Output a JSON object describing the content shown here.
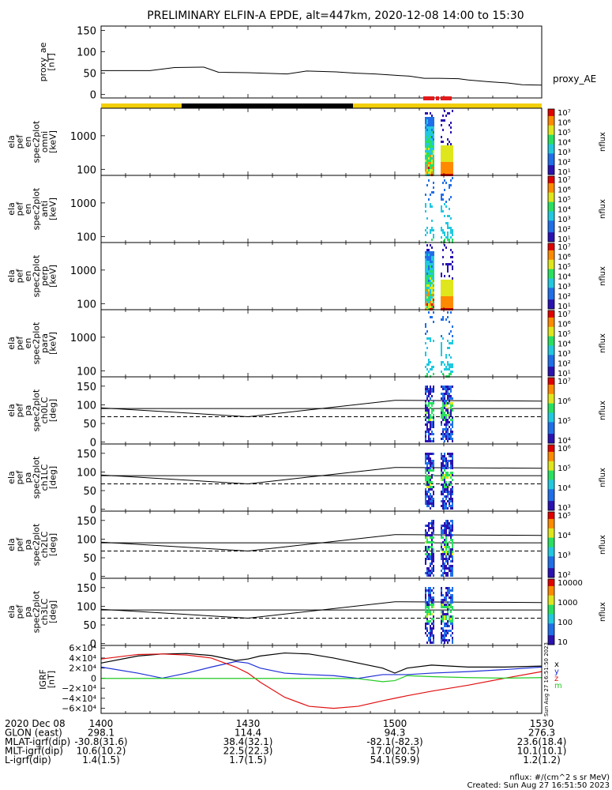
{
  "title": "PRELIMINARY ELFIN-A EPDE, alt=447km, 2020-12-08 14:00 to 15:30",
  "colors": {
    "bar_sunlit": "#f2cf08",
    "bar_shadow": "#000000",
    "science_zone": "#e31a1c",
    "igrf_x": "#000000",
    "igrf_y": "#1f2fd6",
    "igrf_z": "#e01010",
    "igrf_mag": "#22cc22"
  },
  "chart_data": [
    {
      "id": "proxy_ae",
      "type": "line",
      "ylabel": [
        "proxy_ae",
        "[nT]"
      ],
      "yticks": [
        "150",
        "100",
        "50",
        "0"
      ],
      "ylim": [
        -8,
        160
      ],
      "legend": "proxy_AE",
      "x_minutes": [
        0,
        20,
        30,
        42,
        48,
        60,
        76,
        84,
        96,
        104,
        112,
        120,
        126,
        132,
        138,
        146,
        150,
        158,
        166,
        172,
        180
      ],
      "y": [
        56,
        56,
        63,
        64,
        52,
        51,
        48,
        55,
        53,
        50,
        48,
        45,
        43,
        38,
        38,
        37,
        34,
        30,
        27,
        23,
        22
      ]
    },
    {
      "id": "en_omni",
      "type": "heatmap",
      "ylabel": [
        "ela",
        "pef",
        "en",
        "spec2plot",
        "omni",
        "[keV]"
      ],
      "yticks": [
        "1000",
        "100"
      ],
      "cbar_ticks": [
        "10⁷",
        "10⁶",
        "10⁵",
        "10⁴",
        "10³",
        "10²",
        "10¹"
      ],
      "cbar_label": "nflux"
    },
    {
      "id": "en_anti",
      "type": "heatmap",
      "ylabel": [
        "ela",
        "pef",
        "en",
        "spec2plot",
        "anti",
        "[keV]"
      ],
      "yticks": [
        "1000",
        "100"
      ],
      "cbar_ticks": [
        "10⁷",
        "10⁶",
        "10⁵",
        "10⁴",
        "10³",
        "10²",
        "10¹"
      ],
      "cbar_label": "nflux"
    },
    {
      "id": "en_perp",
      "type": "heatmap",
      "ylabel": [
        "ela",
        "pef",
        "en",
        "spec2plot",
        "perp",
        "[keV]"
      ],
      "yticks": [
        "1000",
        "100"
      ],
      "cbar_ticks": [
        "10⁷",
        "10⁶",
        "10⁵",
        "10⁴",
        "10³",
        "10²",
        "10¹"
      ],
      "cbar_label": "nflux"
    },
    {
      "id": "en_para",
      "type": "heatmap",
      "ylabel": [
        "ela",
        "pef",
        "en",
        "spec2plot",
        "para",
        "[keV]"
      ],
      "yticks": [
        "1000",
        "100"
      ],
      "cbar_ticks": [
        "10⁷",
        "10⁶",
        "10⁵",
        "10⁴",
        "10³",
        "10²",
        "10¹"
      ],
      "cbar_label": "nflux"
    },
    {
      "id": "pa_ch0",
      "type": "heatmap",
      "ylabel": [
        "ela",
        "pef",
        "pa",
        "spec2plot",
        "ch0LC",
        "[deg]"
      ],
      "yticks": [
        "150",
        "100",
        "50",
        "0"
      ],
      "cbar_ticks": [
        "10⁷",
        "10⁶",
        "10⁵",
        "10⁴"
      ],
      "cbar_label": "nflux"
    },
    {
      "id": "pa_ch1",
      "type": "heatmap",
      "ylabel": [
        "ela",
        "pef",
        "pa",
        "spec2plot",
        "ch1LC",
        "[deg]"
      ],
      "yticks": [
        "150",
        "100",
        "50",
        "0"
      ],
      "cbar_ticks": [
        "10⁶",
        "10⁵",
        "10⁴",
        "10³"
      ],
      "cbar_label": "nflux"
    },
    {
      "id": "pa_ch2",
      "type": "heatmap",
      "ylabel": [
        "ela",
        "pef",
        "pa",
        "spec2plot",
        "ch2LC",
        "[deg]"
      ],
      "yticks": [
        "150",
        "100",
        "50",
        "0"
      ],
      "cbar_ticks": [
        "10⁵",
        "10⁴",
        "10³",
        "10²"
      ],
      "cbar_label": "nflux"
    },
    {
      "id": "pa_ch3",
      "type": "heatmap",
      "ylabel": [
        "ela",
        "pef",
        "pa",
        "spec2plot",
        "ch3LC",
        "[deg]"
      ],
      "yticks": [
        "150",
        "100",
        "50",
        "0"
      ],
      "cbar_ticks": [
        "10000",
        "1000",
        "100",
        "10"
      ],
      "cbar_label": "nflux"
    },
    {
      "id": "igrf",
      "type": "line",
      "ylabel": [
        "IGRF",
        "[nT]"
      ],
      "yticks": [
        "6×10⁴",
        "4×10⁴",
        "2×10⁴",
        "0",
        "−2×10⁴",
        "−4×10⁴",
        "−6×10⁴"
      ],
      "ylim": [
        -70000,
        65000
      ],
      "legend": [
        "x",
        "y",
        "z",
        "m"
      ],
      "x_minutes": [
        0,
        15,
        25,
        35,
        45,
        55,
        60,
        65,
        75,
        85,
        95,
        105,
        115,
        120,
        125,
        135,
        150,
        165,
        180
      ],
      "series": [
        {
          "name": "x",
          "y": [
            30000,
            44000,
            48000,
            49000,
            45000,
            35000,
            38000,
            44000,
            50000,
            48000,
            40000,
            30000,
            20000,
            10000,
            20000,
            26000,
            22000,
            22000,
            24000
          ]
        },
        {
          "name": "y",
          "y": [
            22000,
            10000,
            0,
            10000,
            22000,
            33000,
            30000,
            20000,
            10000,
            7000,
            5000,
            -500,
            7000,
            7000,
            7000,
            10000,
            13000,
            17000,
            22000
          ]
        },
        {
          "name": "z",
          "y": [
            38000,
            47000,
            48000,
            46000,
            40000,
            22000,
            10000,
            -8000,
            -38000,
            -56000,
            -60000,
            -56000,
            -45000,
            -40000,
            -35000,
            -26000,
            -14000,
            0,
            13000
          ]
        },
        {
          "name": "m",
          "y": [
            -500,
            -500,
            -500,
            -500,
            -500,
            -500,
            -500,
            -500,
            -500,
            -500,
            -500,
            -1000,
            -7000,
            -5000,
            5000,
            3000,
            1000,
            0,
            1000
          ]
        }
      ]
    }
  ],
  "footer": {
    "rows": [
      {
        "label": "2020 Dec 08",
        "values": [
          "1400",
          "1430",
          "1500",
          "1530"
        ]
      },
      {
        "label": "GLON (east)",
        "values": [
          "298.1",
          "114.4",
          "94.3",
          "276.3"
        ]
      },
      {
        "label": "MLAT-igrf(dip)",
        "values": [
          "-30.8(31.6)",
          "38.4(32.1)",
          "-82.1(-82.3)",
          "23.6(18.4)"
        ]
      },
      {
        "label": "MLT-igrf(dip)",
        "values": [
          "10.6(10.2)",
          "22.5(22.3)",
          "17.0(20.5)",
          "10.1(10.1)"
        ]
      },
      {
        "label": "L-igrf(dip)",
        "values": [
          "1.4(1.5)",
          "1.7(1.5)",
          "54.1(59.9)",
          "1.2(1.2)"
        ]
      }
    ],
    "units_note": "nflux: #/(cm^2 s sr MeV)",
    "created": "Created: Sun Aug 27 16:51:50 2023",
    "side_stamp": "Sun Aug 27 16:51:50 2023"
  }
}
